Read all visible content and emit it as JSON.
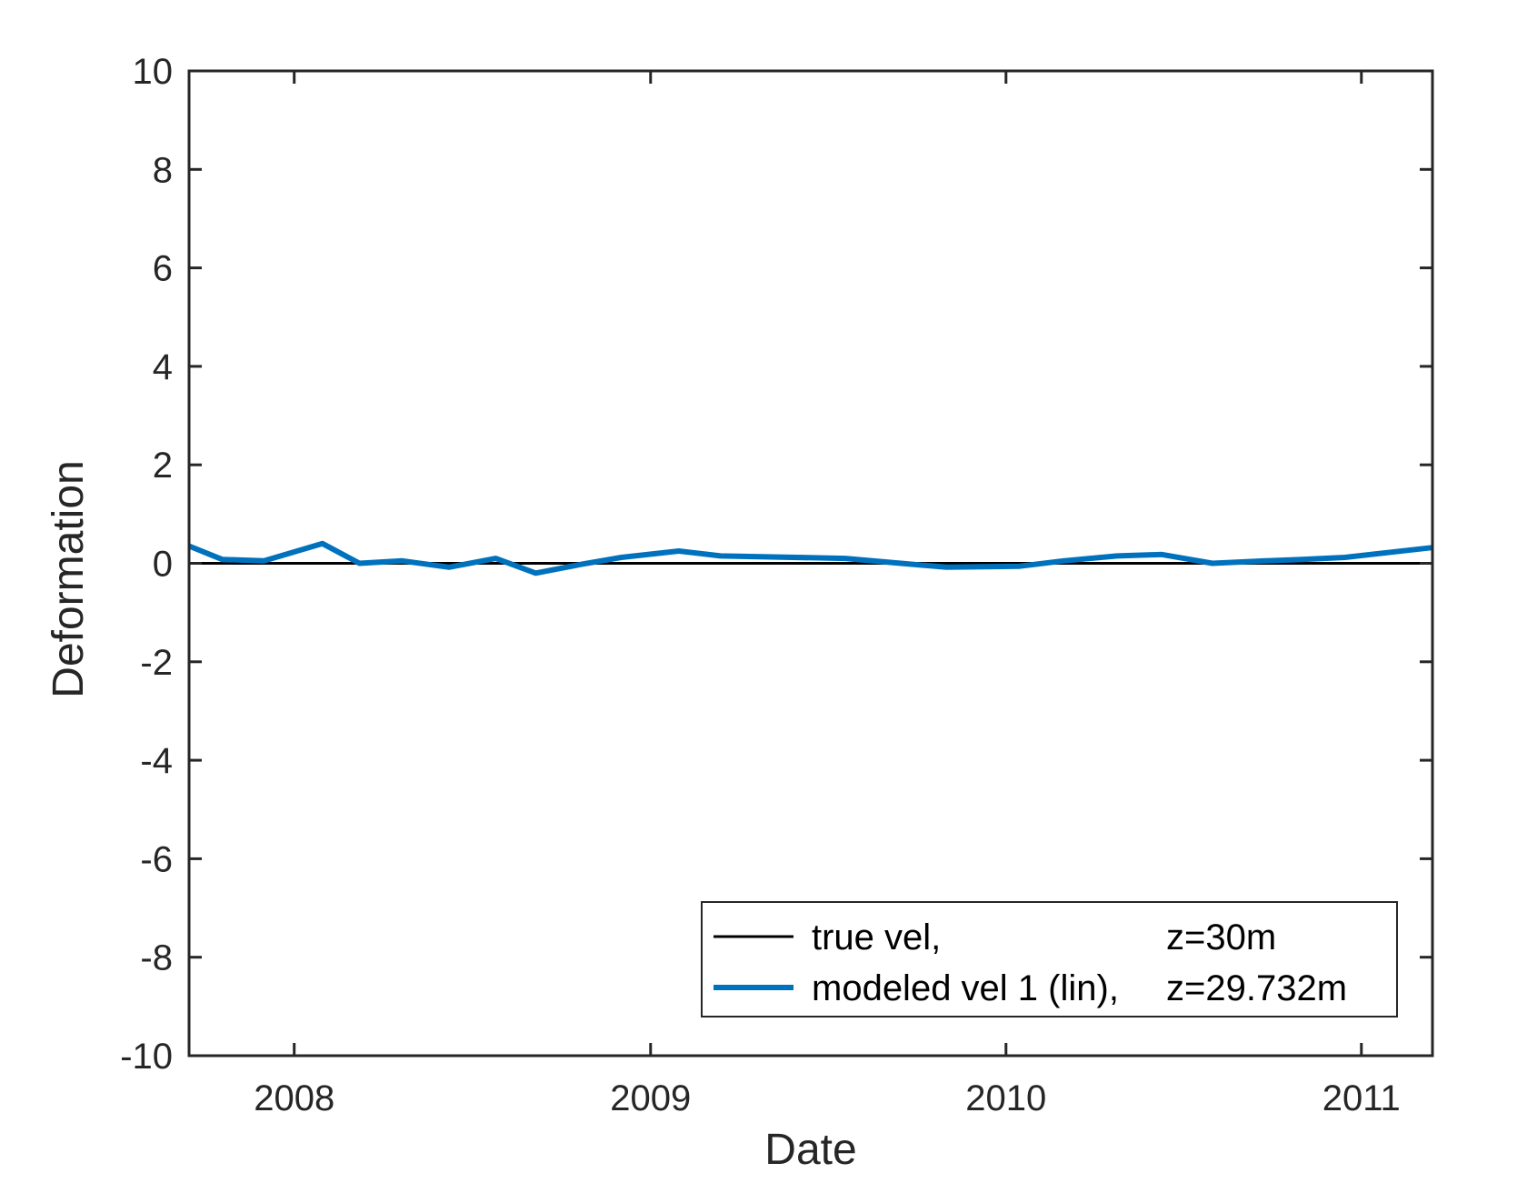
{
  "chart_data": {
    "type": "line",
    "title": "",
    "xlabel": "Date",
    "ylabel": "Deformation",
    "xlim": [
      "2007-09-15",
      "2011-03-15"
    ],
    "ylim": [
      -10,
      10
    ],
    "x_ticks": [
      {
        "date": "2008-01-01",
        "label": "2008"
      },
      {
        "date": "2009-01-01",
        "label": "2009"
      },
      {
        "date": "2010-01-01",
        "label": "2010"
      },
      {
        "date": "2011-01-01",
        "label": "2011"
      }
    ],
    "y_ticks": [
      {
        "value": 10,
        "label": "10"
      },
      {
        "value": 8,
        "label": "8"
      },
      {
        "value": 6,
        "label": "6"
      },
      {
        "value": 4,
        "label": "4"
      },
      {
        "value": 2,
        "label": "2"
      },
      {
        "value": 0,
        "label": "0"
      },
      {
        "value": -2,
        "label": "-2"
      },
      {
        "value": -4,
        "label": "-4"
      },
      {
        "value": -6,
        "label": "-6"
      },
      {
        "value": -8,
        "label": "-8"
      },
      {
        "value": -10,
        "label": "-10"
      }
    ],
    "grid": false,
    "legend_position": "bottom-right",
    "series": [
      {
        "legend_left": "true vel,",
        "legend_right": "z=30m",
        "color": "#000000",
        "x": [
          "2007-09-15",
          "2011-03-15"
        ],
        "y": [
          0,
          0
        ]
      },
      {
        "legend_left": "modeled vel 1 (lin),",
        "legend_right": "z=29.732m",
        "color": "#0072bd",
        "x": [
          "2007-09-15",
          "2007-10-19",
          "2007-12-01",
          "2008-01-30",
          "2008-03-08",
          "2008-04-21",
          "2008-06-08",
          "2008-07-26",
          "2008-09-05",
          "2008-10-22",
          "2008-12-02",
          "2009-01-30",
          "2009-03-14",
          "2009-07-20",
          "2009-09-15",
          "2009-11-01",
          "2010-01-15",
          "2010-03-01",
          "2010-04-25",
          "2010-06-10",
          "2010-08-01",
          "2010-09-25",
          "2010-11-01",
          "2010-12-15",
          "2011-03-15"
        ],
        "y": [
          0.35,
          0.08,
          0.05,
          0.4,
          0.0,
          0.05,
          -0.08,
          0.1,
          -0.2,
          -0.02,
          0.12,
          0.25,
          0.15,
          0.1,
          0.0,
          -0.08,
          -0.06,
          0.05,
          0.15,
          0.18,
          0.0,
          0.05,
          0.08,
          0.12,
          0.32
        ]
      }
    ]
  }
}
